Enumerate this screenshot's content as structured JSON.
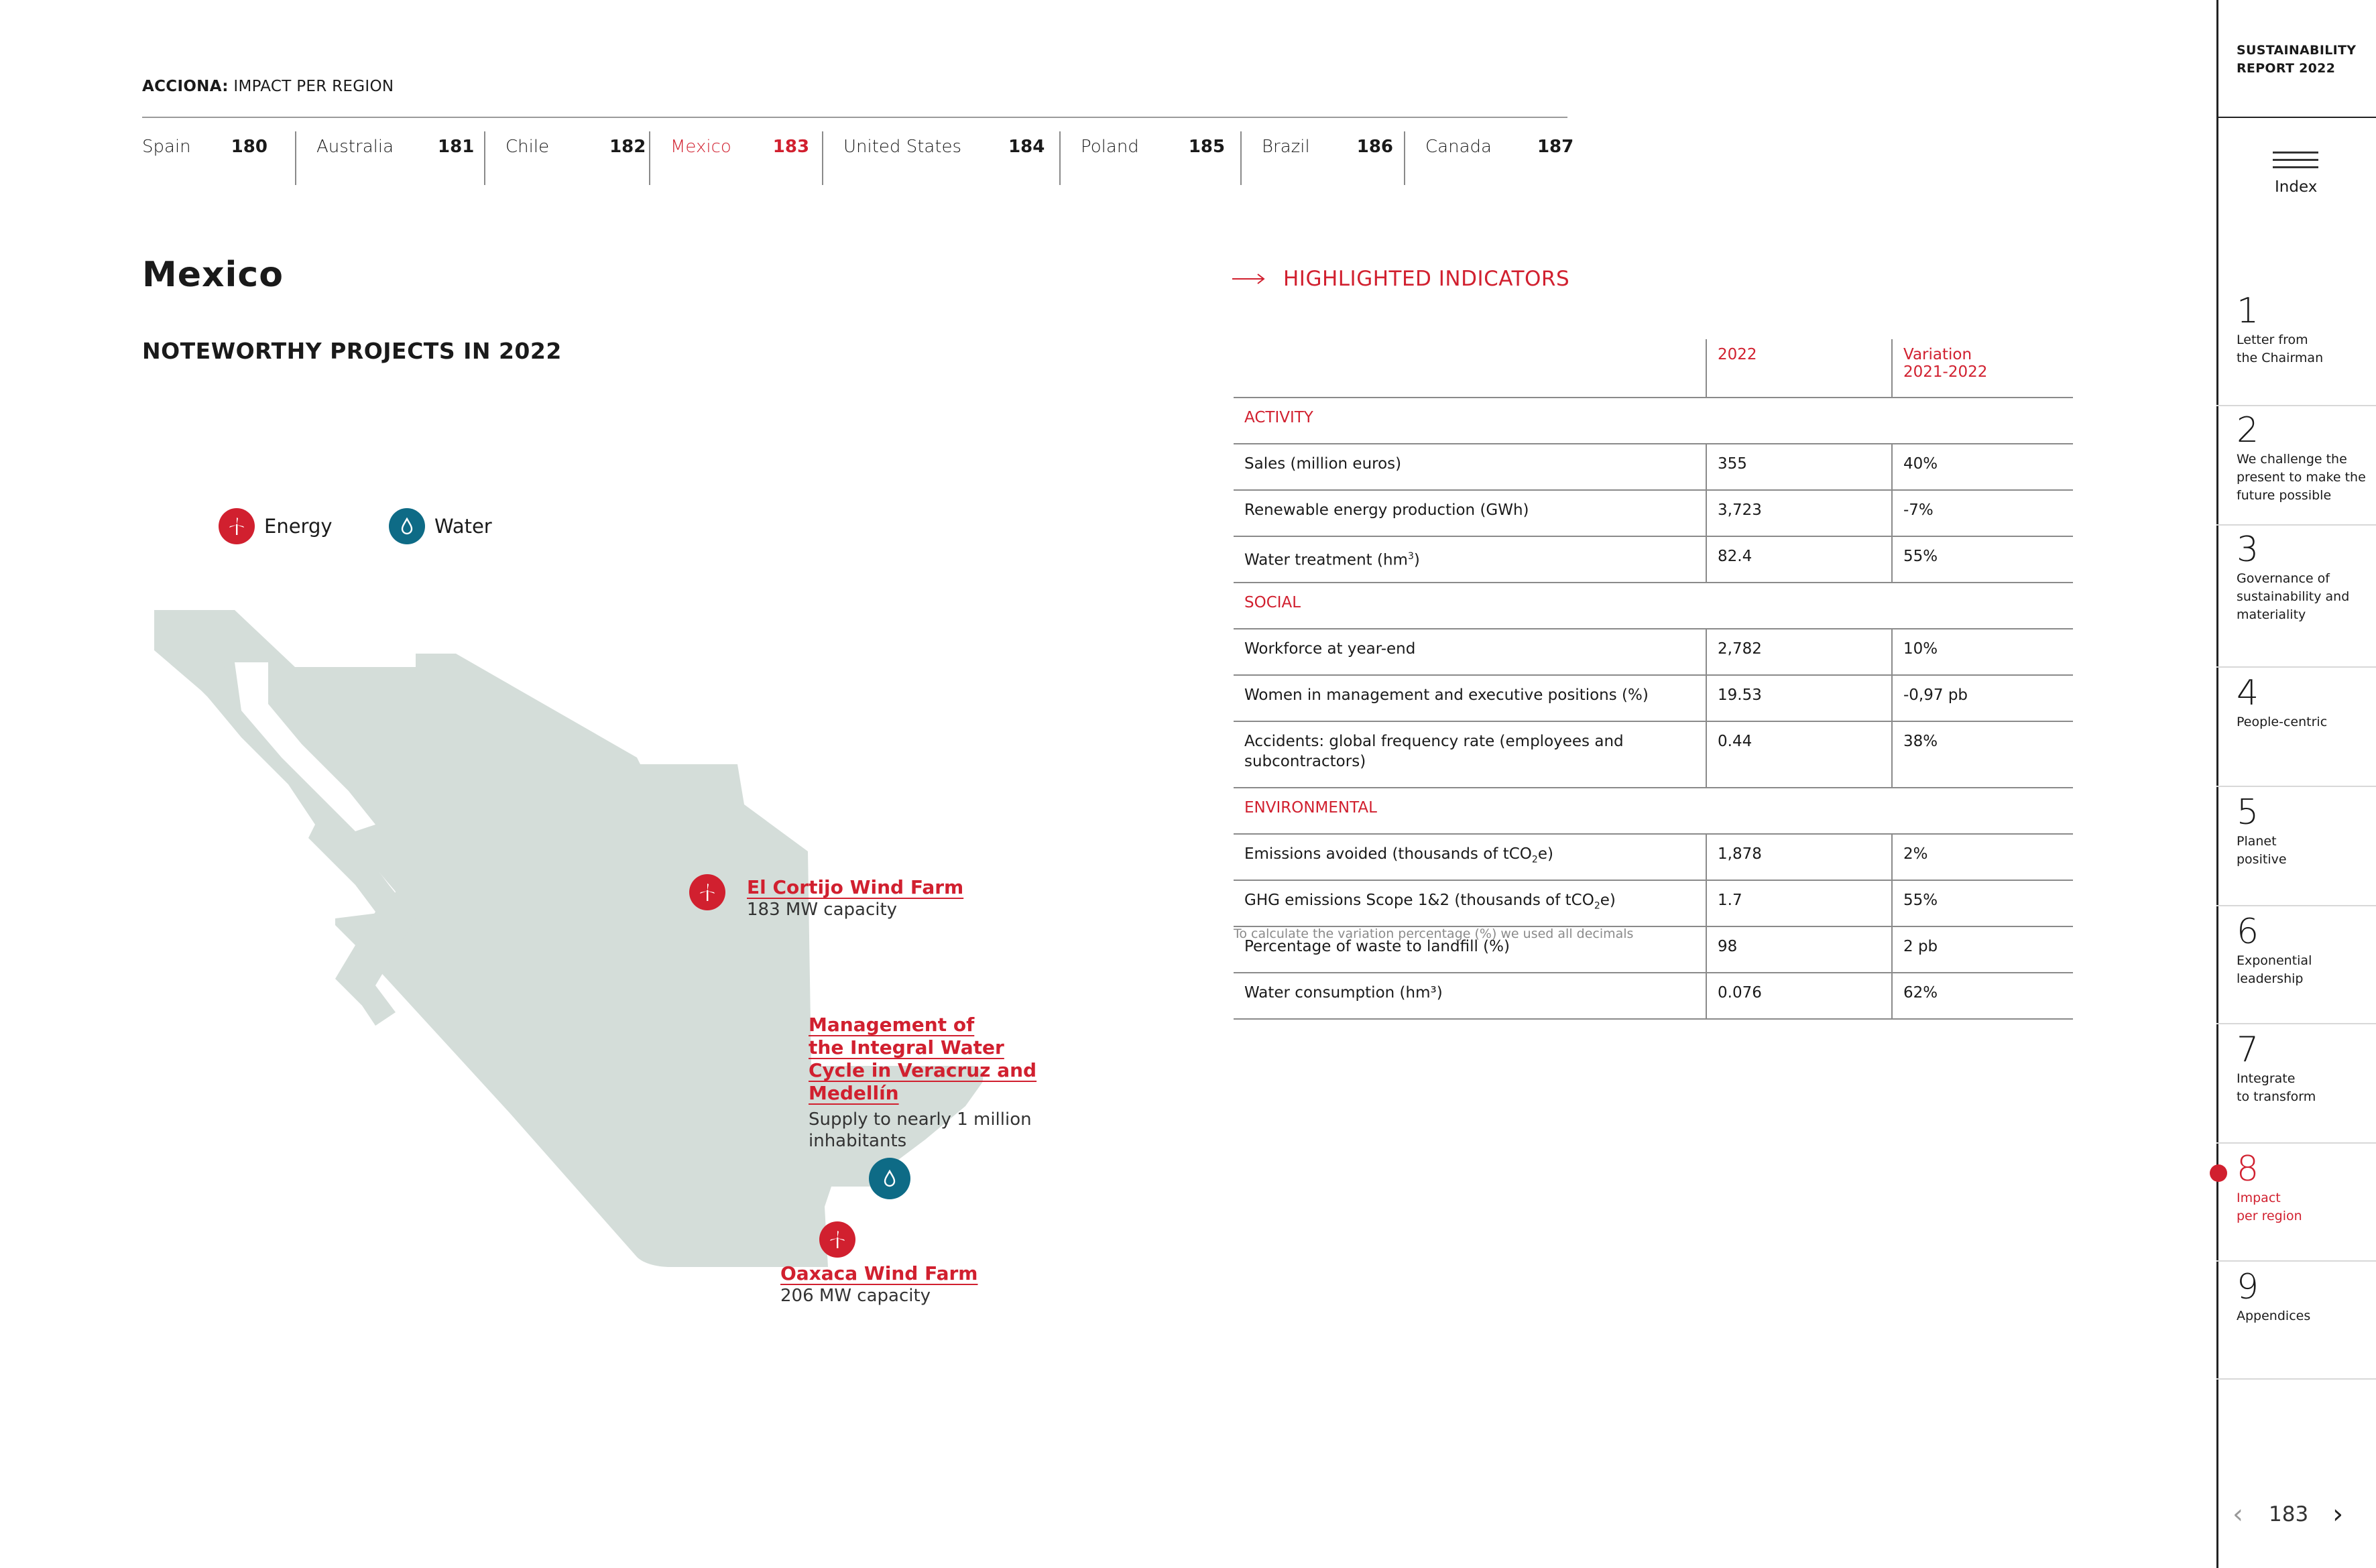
{
  "header": {
    "brand": "ACCIONA:",
    "section": "IMPACT PER REGION"
  },
  "regions": [
    {
      "name": "Spain",
      "page": "180"
    },
    {
      "name": "Australia",
      "page": "181"
    },
    {
      "name": "Chile",
      "page": "182"
    },
    {
      "name": "Mexico",
      "page": "183"
    },
    {
      "name": "United States",
      "page": "184"
    },
    {
      "name": "Poland",
      "page": "185"
    },
    {
      "name": "Brazil",
      "page": "186"
    },
    {
      "name": "Canada",
      "page": "187"
    }
  ],
  "active_region": "Mexico",
  "country_title": "Mexico",
  "projects_title": "NOTEWORTHY PROJECTS IN 2022",
  "legend": {
    "energy": "Energy",
    "water": "Water"
  },
  "projects": {
    "cortijo": {
      "name": "El Cortijo Wind Farm",
      "detail": "183 MW capacity",
      "type": "energy"
    },
    "water_cycle": {
      "name_lines": [
        "Management of",
        "the Integral Water",
        "Cycle in Veracruz and",
        "Medellín"
      ],
      "detail_lines": [
        "Supply to nearly 1 million",
        "inhabitants"
      ],
      "type": "water"
    },
    "oaxaca": {
      "name": "Oaxaca Wind Farm",
      "detail": "206 MW capacity",
      "type": "energy"
    }
  },
  "indicators": {
    "title": "HIGHLIGHTED INDICATORS",
    "col_2022": "2022",
    "col_variation_1": "Variation",
    "col_variation_2": "2021-2022",
    "sections": {
      "activity": "ACTIVITY",
      "social": "SOCIAL",
      "environmental": "ENVIRONMENTAL"
    },
    "rows": {
      "sales": {
        "label": "Sales (million euros)",
        "value": "355",
        "variation": "40%"
      },
      "renewable": {
        "label": "Renewable energy production (GWh)",
        "value": "3,723",
        "variation": "-7%"
      },
      "water_treatment": {
        "label_main": "Water treatment (hm",
        "label_sup": "3",
        "label_end": ")",
        "value": "82.4",
        "variation": "55%"
      },
      "workforce": {
        "label": "Workforce at year-end",
        "value": "2,782",
        "variation": "10%"
      },
      "women": {
        "label": "Women in management and executive positions (%)",
        "value": "19.53",
        "variation": "-0,97 pb"
      },
      "accidents": {
        "label_1": "Accidents: global frequency rate (employees and",
        "label_2": "subcontractors)",
        "value": "0.44",
        "variation": "38%"
      },
      "emissions_avoided": {
        "label_main": "Emissions avoided (thousands of tCO",
        "label_sub": "2",
        "label_end": "e)",
        "value": "1,878",
        "variation": "2%"
      },
      "ghg": {
        "label_main": "GHG emissions Scope 1&2 (thousands of tCO",
        "label_sub": "2",
        "label_end": "e)",
        "value": "1.7",
        "variation": "55%"
      },
      "waste": {
        "label": "Percentage of waste to landfill (%)",
        "value": "98",
        "variation": "2 pb"
      },
      "water_consumption": {
        "label": "Water consumption (hm³)",
        "value": "0.076",
        "variation": "62%"
      }
    },
    "note": "To calculate the variation percentage (%) we used all decimals"
  },
  "sidebar": {
    "report_1": "SUSTAINABILITY",
    "report_2": "REPORT 2022",
    "index_label": "Index",
    "chapters": [
      {
        "num": "1",
        "l1": "Letter from",
        "l2": "the Chairman",
        "l3": ""
      },
      {
        "num": "2",
        "l1": "We challenge the",
        "l2": "present to make the",
        "l3": "future possible"
      },
      {
        "num": "3",
        "l1": "Governance of",
        "l2": "sustainability and",
        "l3": "materiality"
      },
      {
        "num": "4",
        "l1": "People-centric",
        "l2": "",
        "l3": ""
      },
      {
        "num": "5",
        "l1": "Planet",
        "l2": "positive",
        "l3": ""
      },
      {
        "num": "6",
        "l1": "Exponential",
        "l2": "leadership",
        "l3": ""
      },
      {
        "num": "7",
        "l1": "Integrate",
        "l2": "to transform",
        "l3": ""
      },
      {
        "num": "8",
        "l1": "Impact",
        "l2": "per region",
        "l3": ""
      },
      {
        "num": "9",
        "l1": "Appendices",
        "l2": "",
        "l3": ""
      }
    ],
    "active_chapter": "8",
    "page_number": "183",
    "prev_icon": "chevron-left-icon",
    "next_icon": "chevron-right-icon"
  },
  "colors": {
    "accent": "#d1202f",
    "water": "#0e6b86",
    "map_fill": "#d4ddd9"
  }
}
